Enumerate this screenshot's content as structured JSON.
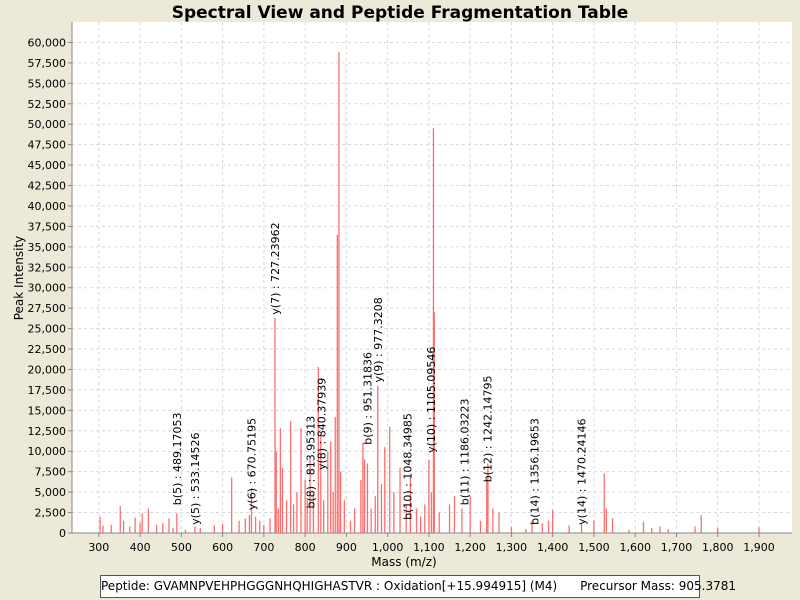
{
  "chart_data": {
    "type": "bar",
    "title": "Spectral View and Peptide Fragmentation Table",
    "xlabel": "Mass (m/z)",
    "ylabel": "Peak Intensity",
    "xlim": [
      235,
      1980
    ],
    "ylim": [
      0,
      62500
    ],
    "grid": true,
    "x_ticks": [
      300,
      400,
      500,
      600,
      700,
      800,
      900,
      1000,
      1100,
      1200,
      1300,
      1400,
      1500,
      1600,
      1700,
      1800,
      1900
    ],
    "x_tick_labels": [
      "300",
      "400",
      "500",
      "600",
      "700",
      "800",
      "900",
      "1,000",
      "1,100",
      "1,200",
      "1,300",
      "1,400",
      "1,500",
      "1,600",
      "1,700",
      "1,800",
      "1,900"
    ],
    "y_ticks": [
      0,
      2500,
      5000,
      7500,
      10000,
      12500,
      15000,
      17500,
      20000,
      22500,
      25000,
      27500,
      30000,
      32500,
      35000,
      37500,
      40000,
      42500,
      45000,
      47500,
      50000,
      52500,
      55000,
      57500,
      60000
    ],
    "y_tick_labels": [
      "0",
      "2,500",
      "5,000",
      "7,500",
      "10,000",
      "12,500",
      "15,000",
      "17,500",
      "20,000",
      "22,500",
      "25,000",
      "27,500",
      "30,000",
      "32,500",
      "35,000",
      "37,500",
      "40,000",
      "42,500",
      "45,000",
      "47,500",
      "50,000",
      "52,500",
      "55,000",
      "57,500",
      "60,000"
    ],
    "series_color": "#FF5555",
    "peaks": [
      [
        303,
        2000
      ],
      [
        310,
        900
      ],
      [
        330,
        1000
      ],
      [
        352,
        3300
      ],
      [
        360,
        1500
      ],
      [
        375,
        800
      ],
      [
        388,
        1900
      ],
      [
        400,
        1200
      ],
      [
        405,
        2400
      ],
      [
        420,
        3000
      ],
      [
        440,
        1000
      ],
      [
        455,
        1200
      ],
      [
        470,
        1800
      ],
      [
        480,
        600
      ],
      [
        489,
        2400
      ],
      [
        510,
        400
      ],
      [
        533,
        800
      ],
      [
        546,
        600
      ],
      [
        580,
        900
      ],
      [
        600,
        1100
      ],
      [
        622,
        6800
      ],
      [
        640,
        1500
      ],
      [
        655,
        1800
      ],
      [
        665,
        2200
      ],
      [
        670,
        5500
      ],
      [
        680,
        2000
      ],
      [
        690,
        1500
      ],
      [
        700,
        1000
      ],
      [
        715,
        1800
      ],
      [
        727,
        26300
      ],
      [
        730,
        10000
      ],
      [
        735,
        3000
      ],
      [
        740,
        12800
      ],
      [
        745,
        8000
      ],
      [
        755,
        4000
      ],
      [
        765,
        13700
      ],
      [
        772,
        3500
      ],
      [
        780,
        5000
      ],
      [
        790,
        12800
      ],
      [
        800,
        6500
      ],
      [
        805,
        4000
      ],
      [
        812,
        9000
      ],
      [
        820,
        4800
      ],
      [
        832,
        20300
      ],
      [
        838,
        12000
      ],
      [
        845,
        4000
      ],
      [
        855,
        10000
      ],
      [
        862,
        11200
      ],
      [
        868,
        5000
      ],
      [
        873,
        14200
      ],
      [
        878,
        36500
      ],
      [
        882,
        58800
      ],
      [
        886,
        7500
      ],
      [
        895,
        4000
      ],
      [
        910,
        1500
      ],
      [
        920,
        3000
      ],
      [
        935,
        6500
      ],
      [
        940,
        11000
      ],
      [
        944,
        9000
      ],
      [
        951,
        8500
      ],
      [
        960,
        3000
      ],
      [
        970,
        4500
      ],
      [
        976,
        18000
      ],
      [
        985,
        6000
      ],
      [
        993,
        10500
      ],
      [
        1005,
        13000
      ],
      [
        1015,
        5000
      ],
      [
        1030,
        8000
      ],
      [
        1045,
        3500
      ],
      [
        1055,
        6800
      ],
      [
        1070,
        3000
      ],
      [
        1080,
        2000
      ],
      [
        1090,
        3500
      ],
      [
        1100,
        9000
      ],
      [
        1106,
        5000
      ],
      [
        1111,
        49500
      ],
      [
        1113,
        27000
      ],
      [
        1125,
        2500
      ],
      [
        1150,
        3500
      ],
      [
        1162,
        4500
      ],
      [
        1180,
        3000
      ],
      [
        1200,
        4500
      ],
      [
        1225,
        1500
      ],
      [
        1240,
        6500
      ],
      [
        1243,
        8500
      ],
      [
        1255,
        3000
      ],
      [
        1270,
        2500
      ],
      [
        1300,
        700
      ],
      [
        1335,
        500
      ],
      [
        1350,
        1500
      ],
      [
        1375,
        1200
      ],
      [
        1390,
        1500
      ],
      [
        1400,
        2800
      ],
      [
        1440,
        900
      ],
      [
        1470,
        1200
      ],
      [
        1500,
        1500
      ],
      [
        1525,
        7300
      ],
      [
        1530,
        3000
      ],
      [
        1545,
        1800
      ],
      [
        1585,
        400
      ],
      [
        1620,
        1400
      ],
      [
        1640,
        600
      ],
      [
        1660,
        800
      ],
      [
        1680,
        500
      ],
      [
        1745,
        800
      ],
      [
        1760,
        2200
      ],
      [
        1800,
        600
      ],
      [
        1900,
        700
      ]
    ],
    "annotations": [
      {
        "text": "b(5) : 489.17053",
        "mass": 489,
        "intensity": 3400
      },
      {
        "text": "y(5) : 533.14526",
        "mass": 533,
        "intensity": 1000
      },
      {
        "text": "y(6) : 670.75195",
        "mass": 670,
        "intensity": 2800
      },
      {
        "text": "y(7) : 727.23962",
        "mass": 727,
        "intensity": 26700
      },
      {
        "text": "b(8) : 813.95313",
        "mass": 813,
        "intensity": 3000
      },
      {
        "text": "y(8) : 840.37939",
        "mass": 840,
        "intensity": 7700
      },
      {
        "text": "b(9) : 951.31836",
        "mass": 951,
        "intensity": 10800
      },
      {
        "text": "y(9) : 977.3208",
        "mass": 977,
        "intensity": 18400
      },
      {
        "text": "b(10) : 1048.34985",
        "mass": 1048,
        "intensity": 1600
      },
      {
        "text": "y(10) : 1105.09546",
        "mass": 1105,
        "intensity": 9800
      },
      {
        "text": "b(11) : 1186.03223",
        "mass": 1186,
        "intensity": 3400
      },
      {
        "text": "b(12) : 1242.14795",
        "mass": 1242,
        "intensity": 6200
      },
      {
        "text": "b(14) : 1356.19653",
        "mass": 1356,
        "intensity": 1000
      },
      {
        "text": "y(14) : 1470.24146",
        "mass": 1470,
        "intensity": 1000
      }
    ]
  },
  "legend": {
    "peptide": "Peptide: GVAMNPVEHPHGGGNHQHIGHASTVR : Oxidation[+15.994915] (M4)",
    "precursor": "Precursor Mass: 905.3781"
  }
}
